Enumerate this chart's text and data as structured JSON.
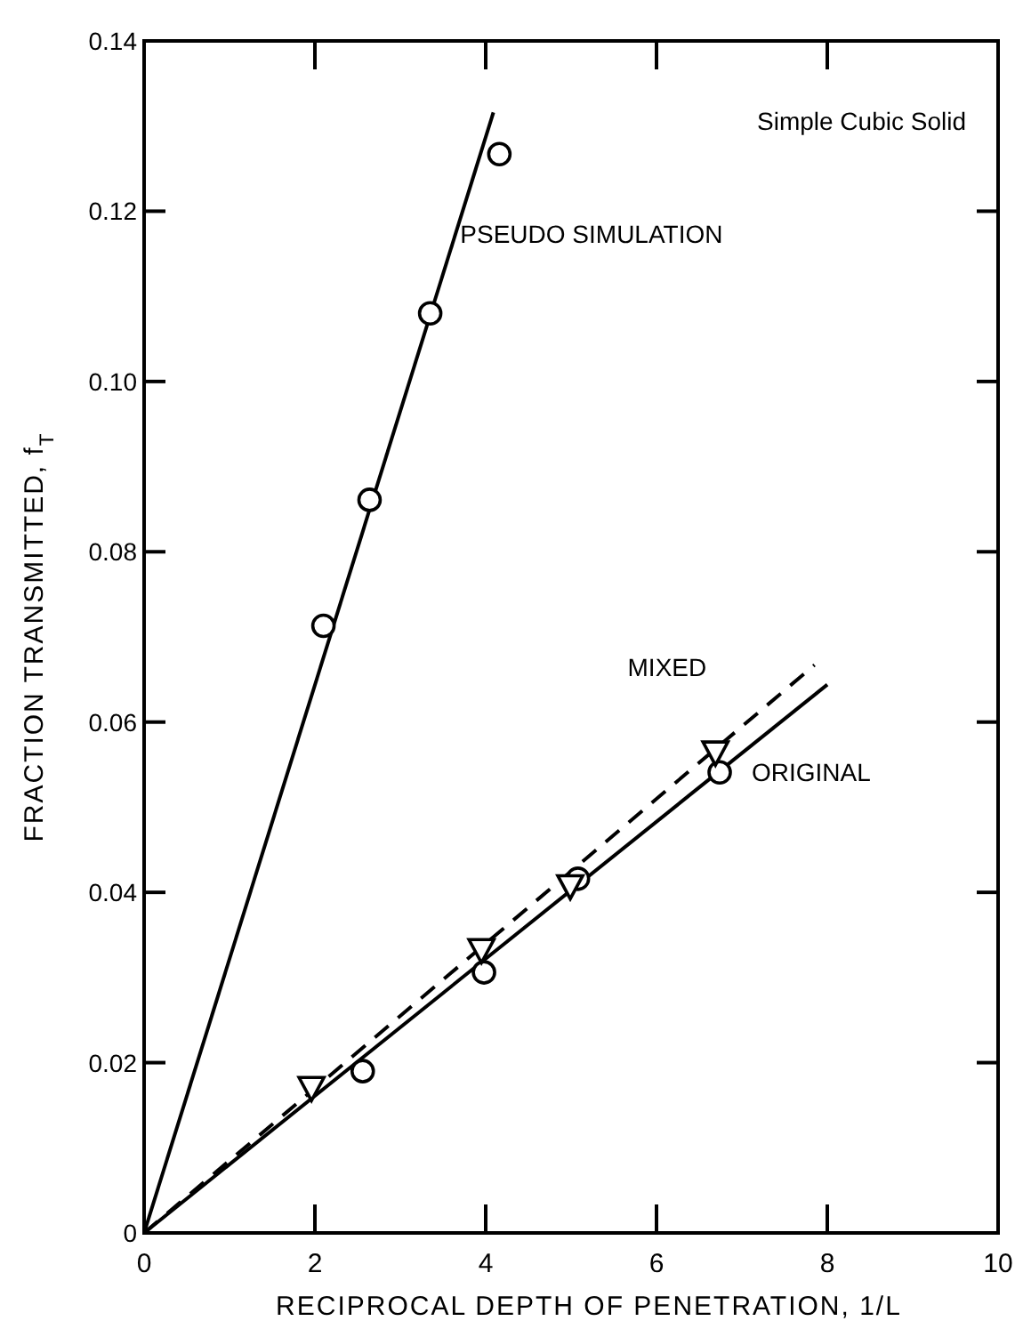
{
  "chart_data": {
    "type": "scatter",
    "xlabel": "RECIPROCAL DEPTH OF PENETRATION, 1/L",
    "ylabel": "FRACTION TRANSMITTED, f$_{T}$",
    "annotations": [
      "Simple Cubic Solid"
    ],
    "xlim": [
      0,
      10
    ],
    "xticks": [
      0,
      2,
      4,
      6,
      8,
      10
    ],
    "ylim": [
      0,
      0.14
    ],
    "yticks": [
      0,
      0.02,
      0.04,
      0.06,
      0.08,
      {
        "value": 0.1,
        "label": "0.10"
      },
      0.12,
      0.14
    ],
    "grid": false,
    "legend": false,
    "series": [
      {
        "name": "PSEUDO SIMULATION",
        "type": "scatter",
        "marker": "circle",
        "color": "#000000",
        "x": [
          2.1,
          2.64,
          3.35,
          4.16
        ],
        "values": [
          0.0713,
          0.0861,
          0.108,
          0.1267
        ]
      },
      {
        "name": "MIXED",
        "type": "scatter",
        "marker": "triangle",
        "color": "#000000",
        "x": [
          1.96,
          3.95,
          4.99,
          6.69
        ],
        "values": [
          0.017,
          0.0332,
          0.0407,
          0.0564
        ]
      },
      {
        "name": "ORIGINAL",
        "type": "scatter",
        "marker": "circle",
        "color": "#000000",
        "x": [
          2.56,
          3.98,
          5.08,
          6.74
        ],
        "values": [
          0.019,
          0.0306,
          0.0416,
          0.0541
        ]
      },
      {
        "type": "line",
        "marker": "none",
        "line_style": "solid",
        "color": "#000000",
        "x": [
          0,
          4.09
        ],
        "values": [
          0,
          0.1316
        ]
      },
      {
        "type": "line",
        "marker": "none",
        "line_style": "dashed",
        "color": "#000000",
        "x": [
          0,
          7.85
        ],
        "values": [
          0,
          0.0667
        ]
      },
      {
        "type": "line",
        "marker": "none",
        "line_style": "solid",
        "color": "#000000",
        "x": [
          0,
          8.0
        ],
        "values": [
          0,
          0.0644
        ]
      }
    ]
  }
}
